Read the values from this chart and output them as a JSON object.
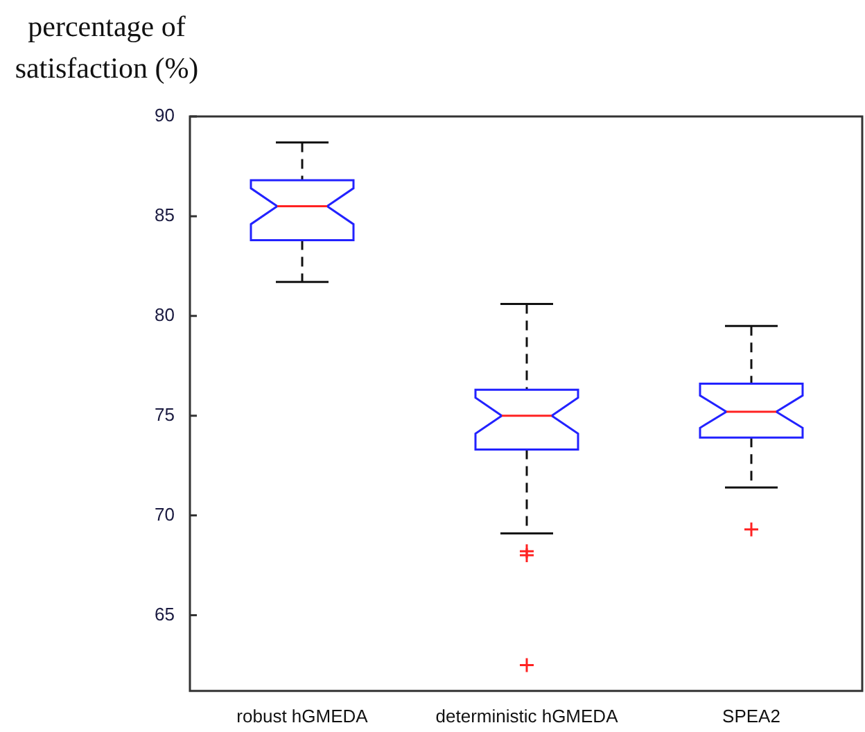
{
  "chart_data": {
    "type": "box",
    "ylabel": "percentage of satisfaction (%)",
    "categories": [
      "robust hGMEDA",
      "deterministic hGMEDA",
      "SPEA2"
    ],
    "boxes": [
      {
        "low": 81.7,
        "q1": 83.8,
        "median": 85.5,
        "q3": 86.8,
        "high": 88.7
      },
      {
        "low": 69.1,
        "q1": 73.3,
        "median": 75.0,
        "q3": 76.3,
        "high": 80.6,
        "outliers": [
          68.2,
          68.0,
          62.5
        ]
      },
      {
        "low": 71.4,
        "q1": 73.9,
        "median": 75.2,
        "q3": 76.6,
        "high": 79.5,
        "outliers": [
          69.3
        ]
      }
    ],
    "ylim": [
      61.2,
      90
    ],
    "yticks": [
      65,
      70,
      75,
      80,
      85,
      90
    ]
  }
}
